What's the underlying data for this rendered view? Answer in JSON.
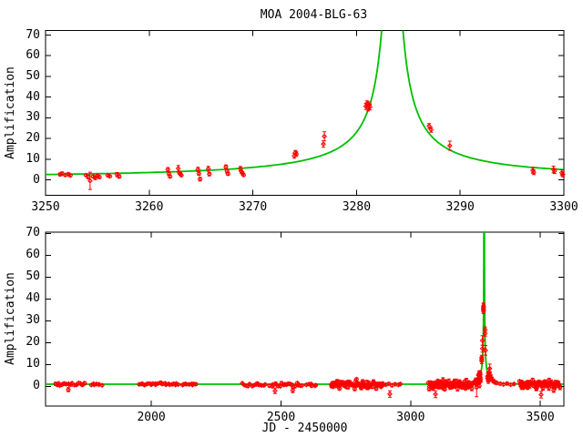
{
  "window": {
    "title": "MOA 2004-BLG-63"
  },
  "chart_data": {
    "type": "scatter",
    "title": "MOA 2004-BLG-63",
    "description": "Gravitational microlensing light curve: red data points with error bars, green point-lens model curve; top panel is a zoom around the peak, bottom panel the full baseline.",
    "colors": {
      "data": "#ff0000",
      "model": "#00c000",
      "frame": "#000000",
      "background": "#ffffff",
      "text": "#000000"
    },
    "legend": "none",
    "grid": false,
    "model_curve": {
      "kind": "point-lens-microlensing",
      "t0": 3283.45,
      "tE": 80,
      "u0": 0.005,
      "baseline_amplification": 1.0
    },
    "panels": [
      {
        "id": "top",
        "ylabel": "Amplification",
        "xlabel": "",
        "xticks": [
          3250,
          3260,
          3270,
          3280,
          3290,
          3300
        ],
        "yticks": [
          0,
          10,
          20,
          30,
          40,
          50,
          60,
          70
        ],
        "xlim": [
          3250,
          3300
        ],
        "ylim": [
          -7.5,
          72.2
        ]
      },
      {
        "id": "bottom",
        "ylabel": "Amplification",
        "xlabel": "JD - 2450000",
        "xticks": [
          2000,
          2500,
          3000,
          3500
        ],
        "yticks": [
          0,
          10,
          20,
          30,
          40,
          50,
          60,
          70
        ],
        "xlim": [
          1592,
          3591
        ],
        "ylim": [
          -9.0,
          70.6
        ]
      }
    ],
    "points_event": [
      [
        3251.4,
        2.6,
        0.7
      ],
      [
        3251.6,
        3.0,
        0.8
      ],
      [
        3251.9,
        2.3,
        0.6
      ],
      [
        3252.2,
        2.7,
        0.7
      ],
      [
        3252.4,
        2.1,
        0.6
      ],
      [
        3253.9,
        2.2,
        0.6
      ],
      [
        3254.1,
        1.4,
        0.9
      ],
      [
        3254.3,
        -0.5,
        4.2
      ],
      [
        3254.6,
        1.6,
        0.7
      ],
      [
        3254.8,
        0.9,
        0.8
      ],
      [
        3255.0,
        1.9,
        0.8
      ],
      [
        3255.2,
        1.3,
        0.7
      ],
      [
        3256.0,
        2.1,
        0.5
      ],
      [
        3256.2,
        1.7,
        0.5
      ],
      [
        3256.9,
        2.5,
        1.0
      ],
      [
        3257.1,
        1.6,
        0.8
      ],
      [
        3261.8,
        5.0,
        0.9
      ],
      [
        3261.9,
        3.0,
        0.8
      ],
      [
        3262.0,
        1.6,
        0.7
      ],
      [
        3262.8,
        5.5,
        1.4
      ],
      [
        3262.9,
        3.4,
        0.7
      ],
      [
        3263.0,
        2.8,
        0.7
      ],
      [
        3263.1,
        2.2,
        0.6
      ],
      [
        3264.7,
        5.0,
        1.0
      ],
      [
        3264.8,
        3.0,
        0.8
      ],
      [
        3264.9,
        0.3,
        0.9
      ],
      [
        3265.7,
        5.3,
        1.2
      ],
      [
        3265.8,
        2.7,
        0.8
      ],
      [
        3267.4,
        6.3,
        0.9
      ],
      [
        3267.5,
        4.2,
        0.8
      ],
      [
        3267.6,
        2.9,
        0.7
      ],
      [
        3268.8,
        5.4,
        1.0
      ],
      [
        3268.9,
        3.9,
        0.7
      ],
      [
        3269.0,
        3.2,
        0.7
      ],
      [
        3269.1,
        2.3,
        0.6
      ],
      [
        3274.0,
        11.6,
        1.2
      ],
      [
        3274.1,
        13.2,
        1.0
      ],
      [
        3274.2,
        12.4,
        1.1
      ],
      [
        3276.8,
        17.3,
        1.6
      ],
      [
        3276.9,
        21.0,
        2.2
      ],
      [
        3280.9,
        35.5,
        1.5
      ],
      [
        3281.0,
        36.8,
        1.4
      ],
      [
        3281.1,
        34.6,
        1.3
      ],
      [
        3281.2,
        36.2,
        1.5
      ],
      [
        3281.3,
        35.2,
        1.4
      ],
      [
        3287.0,
        26.0,
        1.2
      ],
      [
        3287.2,
        24.2,
        1.2
      ],
      [
        3289.0,
        16.5,
        2.2
      ],
      [
        3297.0,
        4.6,
        1.4
      ],
      [
        3297.1,
        3.6,
        1.1
      ],
      [
        3299.0,
        5.0,
        1.6
      ],
      [
        3299.1,
        4.2,
        1.2
      ],
      [
        3299.8,
        3.4,
        1.4
      ],
      [
        3299.9,
        2.6,
        1.2
      ]
    ],
    "points_extra": [
      [
        3242,
        1.8,
        0.5
      ],
      [
        3246,
        2.1,
        0.5
      ],
      [
        3248,
        2.3,
        0.5
      ],
      [
        3303,
        6.5,
        1.6
      ],
      [
        3305,
        8.2,
        2.0
      ],
      [
        3307,
        5.2,
        1.3
      ],
      [
        3310,
        4.1,
        1.1
      ],
      [
        3314,
        3.2,
        1.0
      ],
      [
        3319,
        2.5,
        0.9
      ],
      [
        3325,
        1.9,
        0.8
      ],
      [
        3331,
        1.6,
        0.7
      ],
      [
        3345,
        1.2,
        0.6
      ],
      [
        3358,
        0.9,
        0.5
      ],
      [
        3372,
        1.3,
        0.6
      ],
      [
        3386,
        0.8,
        0.5
      ],
      [
        3399,
        1.1,
        0.5
      ],
      [
        1680,
        -1.5,
        0.9
      ],
      [
        2477,
        -2.0,
        1.3
      ],
      [
        2545,
        -1.8,
        1.1
      ],
      [
        2920,
        -3.5,
        1.5
      ],
      [
        3096,
        -3.6,
        1.6
      ],
      [
        3503,
        -3.8,
        1.5
      ],
      [
        2905,
        0.8,
        0.6
      ],
      [
        2916,
        1.2,
        0.6
      ],
      [
        2928,
        0.5,
        0.7
      ],
      [
        2940,
        1.0,
        0.6
      ],
      [
        2953,
        0.7,
        0.6
      ],
      [
        2960,
        1.1,
        0.6
      ]
    ],
    "baseline_clusters": [
      {
        "jd0": 1628,
        "jd1": 1748,
        "n": 20,
        "amp": 0.95,
        "spread": 0.6,
        "err": 0.55,
        "seed": 11
      },
      {
        "jd0": 1765,
        "jd1": 1812,
        "n": 7,
        "amp": 1.05,
        "spread": 0.35,
        "err": 0.5,
        "seed": 22
      },
      {
        "jd0": 1950,
        "jd1": 2108,
        "n": 24,
        "amp": 1.0,
        "spread": 0.4,
        "err": 0.5,
        "seed": 33
      },
      {
        "jd0": 2115,
        "jd1": 2178,
        "n": 9,
        "amp": 0.95,
        "spread": 0.4,
        "err": 0.5,
        "seed": 44
      },
      {
        "jd0": 2348,
        "jd1": 2442,
        "n": 13,
        "amp": 0.85,
        "spread": 0.5,
        "err": 0.55,
        "seed": 55
      },
      {
        "jd0": 2455,
        "jd1": 2585,
        "n": 20,
        "amp": 0.75,
        "spread": 0.6,
        "err": 0.6,
        "seed": 66
      },
      {
        "jd0": 2595,
        "jd1": 2640,
        "n": 6,
        "amp": 0.9,
        "spread": 0.5,
        "err": 0.6,
        "seed": 77
      },
      {
        "jd0": 2692,
        "jd1": 2895,
        "n": 78,
        "amp": 0.8,
        "spread": 1.3,
        "err": 0.7,
        "seed": 88
      },
      {
        "jd0": 3068,
        "jd1": 3240,
        "n": 92,
        "amp": 0.7,
        "spread": 1.3,
        "err": 0.8,
        "seed": 99
      },
      {
        "jd0": 3420,
        "jd1": 3578,
        "n": 68,
        "amp": 0.7,
        "spread": 1.3,
        "err": 0.8,
        "seed": 110
      }
    ]
  }
}
